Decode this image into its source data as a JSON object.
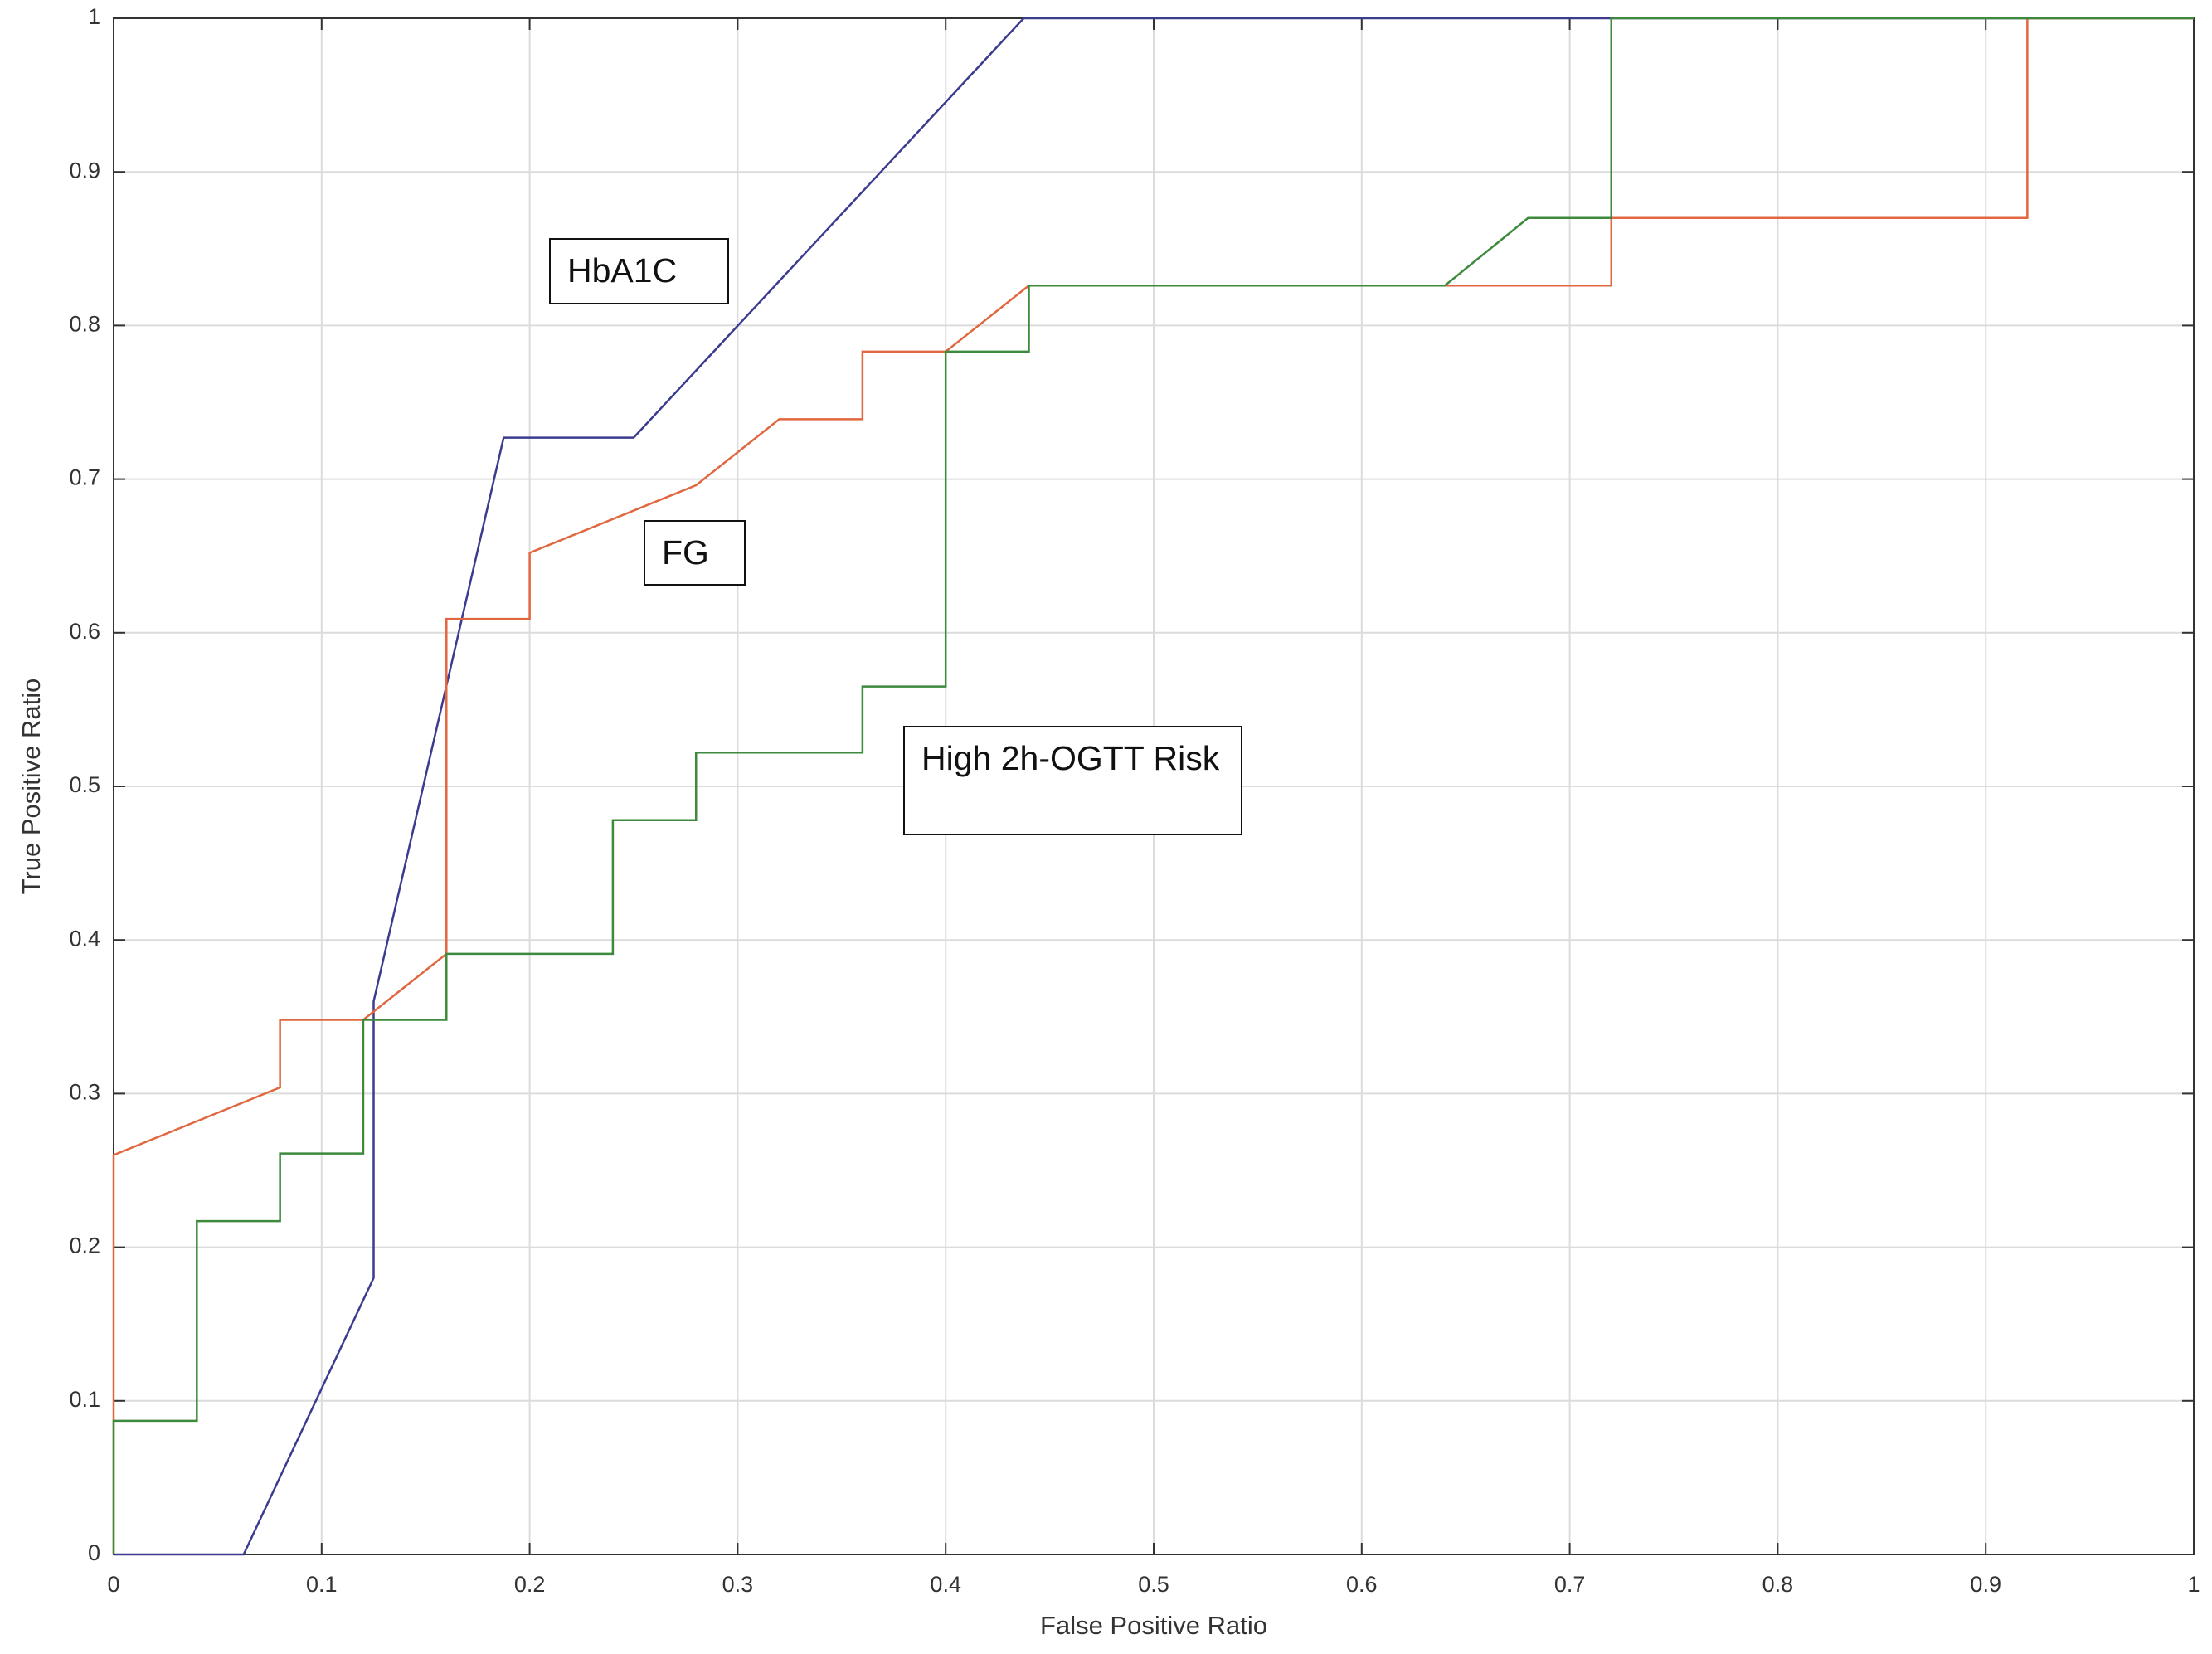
{
  "chart_data": {
    "type": "line",
    "xlabel": "False Positive Ratio",
    "ylabel": "True Positive Ratio",
    "xlim": [
      0,
      1
    ],
    "ylim": [
      0,
      1
    ],
    "xticks": [
      0,
      0.1,
      0.2,
      0.3,
      0.4,
      0.5,
      0.6,
      0.7,
      0.8,
      0.9,
      1
    ],
    "yticks": [
      0,
      0.1,
      0.2,
      0.3,
      0.4,
      0.5,
      0.6,
      0.7,
      0.8,
      0.9,
      1
    ],
    "grid": true,
    "series": [
      {
        "name": "HbA1C",
        "color": "#3b3b8f",
        "x": [
          0,
          0.0625,
          0.125,
          0.125,
          0.1875,
          0.25,
          0.4375,
          1
        ],
        "values": [
          0,
          0,
          0.18,
          0.36,
          0.727,
          0.727,
          1,
          1
        ]
      },
      {
        "name": "FG",
        "color": "#e0673f",
        "x": [
          0,
          0,
          0.08,
          0.08,
          0.12,
          0.16,
          0.16,
          0.2,
          0.2,
          0.28,
          0.32,
          0.36,
          0.36,
          0.4,
          0.44,
          0.72,
          0.72,
          0.92,
          0.92,
          1
        ],
        "values": [
          0,
          0.26,
          0.304,
          0.348,
          0.348,
          0.391,
          0.609,
          0.609,
          0.652,
          0.696,
          0.739,
          0.739,
          0.783,
          0.783,
          0.826,
          0.826,
          0.87,
          0.87,
          1,
          1
        ]
      },
      {
        "name": "High 2h-OGTT Risk",
        "color": "#3d8a3d",
        "x": [
          0,
          0,
          0.04,
          0.04,
          0.08,
          0.08,
          0.12,
          0.12,
          0.16,
          0.16,
          0.24,
          0.24,
          0.28,
          0.28,
          0.36,
          0.36,
          0.4,
          0.4,
          0.44,
          0.44,
          0.64,
          0.68,
          0.72,
          0.72,
          1
        ],
        "values": [
          0,
          0.087,
          0.087,
          0.217,
          0.217,
          0.261,
          0.261,
          0.348,
          0.348,
          0.391,
          0.391,
          0.478,
          0.478,
          0.522,
          0.522,
          0.565,
          0.565,
          0.783,
          0.783,
          0.826,
          0.826,
          0.87,
          0.87,
          1,
          1
        ]
      }
    ]
  }
}
